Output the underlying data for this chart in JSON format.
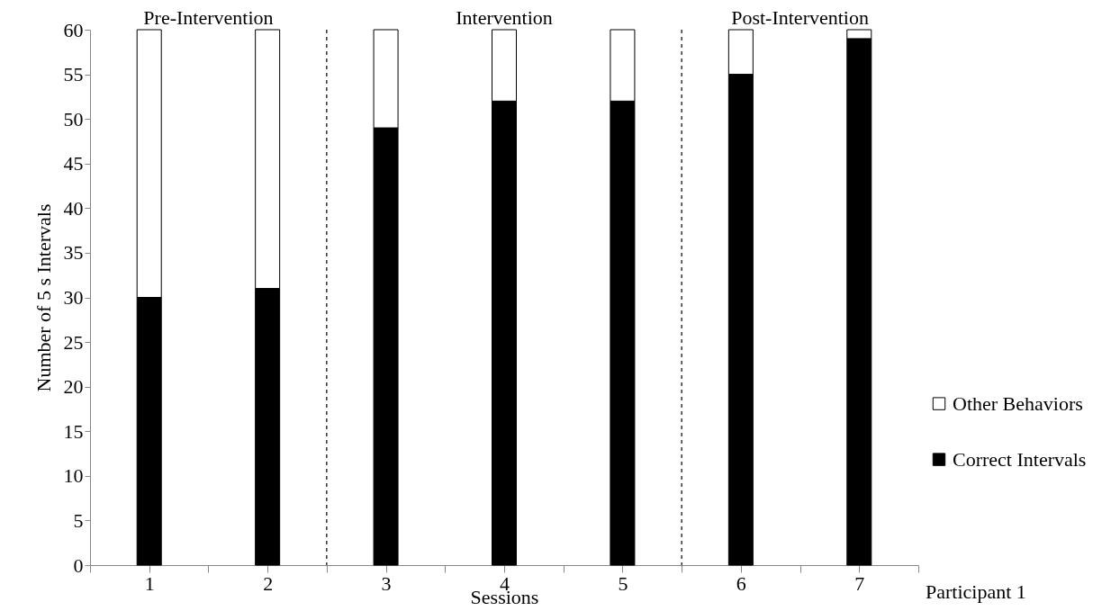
{
  "chart_data": {
    "type": "bar",
    "stacked": true,
    "xlabel": "Sessions",
    "ylabel": "Number of 5 s Intervals",
    "x": [
      1,
      2,
      3,
      4,
      5,
      6,
      7
    ],
    "xlim": [
      0.5,
      7.5
    ],
    "xticks": [
      {
        "value": 0.5,
        "label": null
      },
      1,
      {
        "value": 1.5,
        "label": null
      },
      2,
      {
        "value": 2.5,
        "label": null
      },
      3,
      {
        "value": 3.5,
        "label": null
      },
      4,
      {
        "value": 4.5,
        "label": null
      },
      5,
      {
        "value": 5.5,
        "label": null
      },
      6,
      {
        "value": 6.5,
        "label": null
      },
      7,
      {
        "value": 7.5,
        "label": null
      }
    ],
    "ylim": [
      0,
      60
    ],
    "yticks": [
      0,
      5,
      10,
      15,
      20,
      25,
      30,
      35,
      40,
      45,
      50,
      55,
      60
    ],
    "series": [
      {
        "name": "Correct Intervals",
        "color": "#000000",
        "values": [
          30,
          31,
          49,
          52,
          52,
          55,
          59
        ]
      },
      {
        "name": "Other Behaviors",
        "color": "#ffffff",
        "values": [
          30,
          29,
          11,
          8,
          8,
          5,
          1
        ]
      }
    ],
    "ref_lines": [
      {
        "axis": "x",
        "value": 2.5,
        "line_style": "dashed",
        "color": "#000000"
      },
      {
        "axis": "x",
        "value": 5.5,
        "line_style": "dashed",
        "color": "#000000"
      }
    ],
    "annotations": [
      "Pre-Intervention",
      "Intervention",
      "Post-Intervention",
      "Participant 1"
    ],
    "grid": false,
    "legend": "right"
  }
}
